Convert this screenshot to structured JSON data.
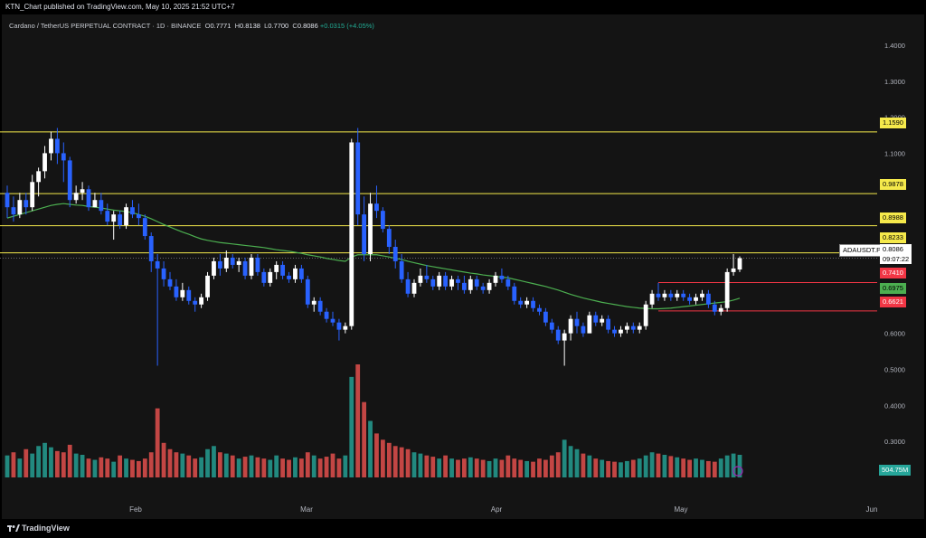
{
  "header": {
    "published": "KTN_Chart published on TradingView.com, May 10, 2025 21:52 UTC+7"
  },
  "legend": {
    "symbol": "Cardano / TetherUS PERPETUAL CONTRACT · 1D · BINANCE",
    "o_label": "O",
    "o": "0.7771",
    "h_label": "H",
    "h": "0.8138",
    "l_label": "L",
    "l": "0.7700",
    "c_label": "C",
    "c": "0.8086",
    "change": "+0.0315 (+4.05%)"
  },
  "price_axis": {
    "ticks": [
      "1.4000",
      "1.3000",
      "1.2000",
      "1.1000",
      "0.6000",
      "0.5000",
      "0.4000",
      "0.3000"
    ]
  },
  "time_axis": {
    "labels": [
      "Feb",
      "Mar",
      "Apr",
      "May",
      "Jun"
    ]
  },
  "labels": {
    "symbol_tag": "ADAUSDT.P",
    "last_price": "0.8086",
    "countdown": "09:07:22",
    "volume_value": "504.75M",
    "level_1159": "1.1590",
    "level_0988": "0.9878",
    "level_0899": "0.8988",
    "level_0823": "0.8233",
    "level_0741": "0.7410",
    "level_0698": "0.6975",
    "level_0662": "0.6621",
    "brand": "TradingView"
  },
  "colors": {
    "up": "#ffffff",
    "down": "#2962ff",
    "vol_up": "#26a69a",
    "vol_down": "#ef5350",
    "ma": "#4caf50",
    "level_yellow": "#f5e94b",
    "level_red": "#f23645",
    "bg": "#141414"
  },
  "chart_data": {
    "type": "candlestick",
    "title": "Cardano / TetherUS PERPETUAL CONTRACT · 1D · BINANCE",
    "ylim": [
      0.22,
      1.45
    ],
    "horizontal_levels": [
      {
        "value": 1.159,
        "color": "yellow"
      },
      {
        "value": 0.9878,
        "color": "yellow"
      },
      {
        "value": 0.8988,
        "color": "yellow"
      },
      {
        "value": 0.8233,
        "color": "yellow"
      },
      {
        "value": 0.741,
        "color": "red"
      },
      {
        "value": 0.6621,
        "color": "red"
      }
    ],
    "ma_last": 0.6975,
    "last_close": 0.8086,
    "candles": [
      [
        0.99,
        1.01,
        0.92,
        0.95
      ],
      [
        0.95,
        0.98,
        0.91,
        0.93
      ],
      [
        0.93,
        0.99,
        0.92,
        0.97
      ],
      [
        0.97,
        0.99,
        0.93,
        0.95
      ],
      [
        0.95,
        1.04,
        0.94,
        1.02
      ],
      [
        1.02,
        1.06,
        0.98,
        1.05
      ],
      [
        1.05,
        1.12,
        1.03,
        1.1
      ],
      [
        1.1,
        1.16,
        1.08,
        1.14
      ],
      [
        1.14,
        1.17,
        1.07,
        1.1
      ],
      [
        1.1,
        1.13,
        1.02,
        1.08
      ],
      [
        1.08,
        1.09,
        0.95,
        0.97
      ],
      [
        0.97,
        1.01,
        0.96,
        0.99
      ],
      [
        0.99,
        1.02,
        0.97,
        1.0
      ],
      [
        1.0,
        1.01,
        0.94,
        0.95
      ],
      [
        0.95,
        0.99,
        0.95,
        0.97
      ],
      [
        0.97,
        0.99,
        0.93,
        0.94
      ],
      [
        0.94,
        0.96,
        0.9,
        0.91
      ],
      [
        0.91,
        0.94,
        0.86,
        0.93
      ],
      [
        0.93,
        0.94,
        0.89,
        0.9
      ],
      [
        0.9,
        0.96,
        0.89,
        0.95
      ],
      [
        0.95,
        0.97,
        0.92,
        0.93
      ],
      [
        0.93,
        0.96,
        0.9,
        0.92
      ],
      [
        0.92,
        0.93,
        0.86,
        0.87
      ],
      [
        0.87,
        0.88,
        0.77,
        0.8
      ],
      [
        0.8,
        0.82,
        0.51,
        0.78
      ],
      [
        0.78,
        0.8,
        0.73,
        0.75
      ],
      [
        0.75,
        0.77,
        0.72,
        0.73
      ],
      [
        0.73,
        0.75,
        0.69,
        0.7
      ],
      [
        0.7,
        0.74,
        0.69,
        0.72
      ],
      [
        0.72,
        0.73,
        0.68,
        0.69
      ],
      [
        0.69,
        0.7,
        0.66,
        0.68
      ],
      [
        0.68,
        0.71,
        0.67,
        0.7
      ],
      [
        0.7,
        0.77,
        0.69,
        0.76
      ],
      [
        0.76,
        0.81,
        0.75,
        0.8
      ],
      [
        0.8,
        0.82,
        0.76,
        0.78
      ],
      [
        0.78,
        0.83,
        0.77,
        0.81
      ],
      [
        0.81,
        0.82,
        0.78,
        0.79
      ],
      [
        0.79,
        0.81,
        0.77,
        0.8
      ],
      [
        0.8,
        0.81,
        0.75,
        0.76
      ],
      [
        0.76,
        0.82,
        0.75,
        0.81
      ],
      [
        0.81,
        0.82,
        0.76,
        0.77
      ],
      [
        0.77,
        0.78,
        0.73,
        0.74
      ],
      [
        0.74,
        0.78,
        0.73,
        0.77
      ],
      [
        0.77,
        0.8,
        0.75,
        0.79
      ],
      [
        0.79,
        0.8,
        0.75,
        0.76
      ],
      [
        0.76,
        0.77,
        0.74,
        0.75
      ],
      [
        0.75,
        0.79,
        0.74,
        0.78
      ],
      [
        0.78,
        0.79,
        0.74,
        0.75
      ],
      [
        0.75,
        0.76,
        0.67,
        0.68
      ],
      [
        0.68,
        0.7,
        0.66,
        0.69
      ],
      [
        0.69,
        0.7,
        0.65,
        0.66
      ],
      [
        0.66,
        0.67,
        0.63,
        0.64
      ],
      [
        0.64,
        0.66,
        0.62,
        0.63
      ],
      [
        0.63,
        0.64,
        0.58,
        0.61
      ],
      [
        0.61,
        0.63,
        0.6,
        0.62
      ],
      [
        0.62,
        1.14,
        0.61,
        1.13
      ],
      [
        1.13,
        1.17,
        0.9,
        0.93
      ],
      [
        0.93,
        0.98,
        0.8,
        0.82
      ],
      [
        0.82,
        0.99,
        0.8,
        0.96
      ],
      [
        0.96,
        1.01,
        0.92,
        0.94
      ],
      [
        0.94,
        0.95,
        0.88,
        0.89
      ],
      [
        0.89,
        0.9,
        0.82,
        0.84
      ],
      [
        0.84,
        0.86,
        0.78,
        0.8
      ],
      [
        0.8,
        0.82,
        0.74,
        0.75
      ],
      [
        0.75,
        0.77,
        0.7,
        0.71
      ],
      [
        0.71,
        0.75,
        0.7,
        0.74
      ],
      [
        0.74,
        0.78,
        0.73,
        0.76
      ],
      [
        0.76,
        0.79,
        0.74,
        0.75
      ],
      [
        0.75,
        0.76,
        0.72,
        0.73
      ],
      [
        0.73,
        0.77,
        0.72,
        0.76
      ],
      [
        0.76,
        0.77,
        0.72,
        0.73
      ],
      [
        0.73,
        0.76,
        0.72,
        0.75
      ],
      [
        0.75,
        0.76,
        0.72,
        0.74
      ],
      [
        0.74,
        0.76,
        0.71,
        0.72
      ],
      [
        0.72,
        0.76,
        0.71,
        0.75
      ],
      [
        0.75,
        0.76,
        0.72,
        0.73
      ],
      [
        0.73,
        0.74,
        0.71,
        0.72
      ],
      [
        0.72,
        0.75,
        0.71,
        0.74
      ],
      [
        0.74,
        0.77,
        0.73,
        0.76
      ],
      [
        0.76,
        0.78,
        0.74,
        0.75
      ],
      [
        0.75,
        0.76,
        0.72,
        0.73
      ],
      [
        0.73,
        0.74,
        0.68,
        0.69
      ],
      [
        0.69,
        0.7,
        0.67,
        0.68
      ],
      [
        0.68,
        0.7,
        0.67,
        0.69
      ],
      [
        0.69,
        0.7,
        0.66,
        0.67
      ],
      [
        0.67,
        0.68,
        0.65,
        0.66
      ],
      [
        0.66,
        0.67,
        0.62,
        0.63
      ],
      [
        0.63,
        0.64,
        0.6,
        0.61
      ],
      [
        0.61,
        0.62,
        0.57,
        0.58
      ],
      [
        0.58,
        0.61,
        0.51,
        0.6
      ],
      [
        0.6,
        0.65,
        0.58,
        0.64
      ],
      [
        0.64,
        0.66,
        0.6,
        0.62
      ],
      [
        0.62,
        0.63,
        0.59,
        0.6
      ],
      [
        0.6,
        0.66,
        0.6,
        0.65
      ],
      [
        0.65,
        0.66,
        0.62,
        0.63
      ],
      [
        0.63,
        0.65,
        0.62,
        0.64
      ],
      [
        0.64,
        0.65,
        0.6,
        0.61
      ],
      [
        0.61,
        0.62,
        0.59,
        0.6
      ],
      [
        0.6,
        0.62,
        0.59,
        0.61
      ],
      [
        0.61,
        0.63,
        0.6,
        0.62
      ],
      [
        0.62,
        0.63,
        0.6,
        0.61
      ],
      [
        0.61,
        0.63,
        0.6,
        0.62
      ],
      [
        0.62,
        0.69,
        0.61,
        0.68
      ],
      [
        0.68,
        0.72,
        0.67,
        0.71
      ],
      [
        0.71,
        0.74,
        0.69,
        0.7
      ],
      [
        0.7,
        0.72,
        0.69,
        0.71
      ],
      [
        0.71,
        0.72,
        0.69,
        0.7
      ],
      [
        0.7,
        0.72,
        0.69,
        0.71
      ],
      [
        0.71,
        0.72,
        0.69,
        0.7
      ],
      [
        0.7,
        0.71,
        0.68,
        0.69
      ],
      [
        0.69,
        0.71,
        0.68,
        0.7
      ],
      [
        0.7,
        0.72,
        0.69,
        0.71
      ],
      [
        0.71,
        0.72,
        0.67,
        0.68
      ],
      [
        0.68,
        0.69,
        0.65,
        0.66
      ],
      [
        0.66,
        0.68,
        0.65,
        0.67
      ],
      [
        0.67,
        0.78,
        0.66,
        0.77
      ],
      [
        0.77,
        0.82,
        0.76,
        0.78
      ],
      [
        0.7771,
        0.8138,
        0.77,
        0.8086
      ]
    ],
    "volume": [
      35,
      40,
      30,
      45,
      38,
      50,
      55,
      48,
      42,
      40,
      52,
      38,
      36,
      30,
      28,
      32,
      30,
      25,
      35,
      30,
      28,
      26,
      30,
      40,
      110,
      55,
      45,
      40,
      38,
      35,
      30,
      32,
      45,
      50,
      40,
      38,
      35,
      30,
      33,
      35,
      32,
      30,
      28,
      35,
      30,
      28,
      32,
      30,
      40,
      35,
      30,
      33,
      38,
      30,
      35,
      160,
      180,
      120,
      90,
      70,
      60,
      55,
      50,
      48,
      45,
      40,
      38,
      35,
      33,
      30,
      35,
      30,
      28,
      30,
      32,
      30,
      28,
      26,
      30,
      28,
      35,
      30,
      28,
      26,
      25,
      30,
      28,
      35,
      40,
      60,
      50,
      45,
      38,
      35,
      30,
      28,
      26,
      25,
      24,
      26,
      28,
      30,
      35,
      40,
      38,
      36,
      34,
      32,
      30,
      28,
      30,
      28,
      26,
      25,
      30,
      35,
      38,
      36
    ],
    "volume_dir": [
      1,
      0,
      1,
      0,
      1,
      1,
      1,
      1,
      0,
      0,
      0,
      1,
      1,
      0,
      1,
      0,
      0,
      1,
      0,
      1,
      0,
      0,
      0,
      0,
      0,
      0,
      0,
      0,
      1,
      0,
      0,
      1,
      1,
      1,
      0,
      1,
      0,
      1,
      0,
      1,
      0,
      0,
      1,
      1,
      0,
      0,
      1,
      0,
      0,
      1,
      0,
      0,
      0,
      0,
      1,
      1,
      0,
      0,
      1,
      0,
      0,
      0,
      0,
      0,
      0,
      1,
      1,
      0,
      0,
      1,
      0,
      1,
      0,
      0,
      1,
      0,
      0,
      1,
      1,
      0,
      0,
      0,
      0,
      1,
      0,
      0,
      0,
      0,
      0,
      1,
      1,
      1,
      0,
      1,
      0,
      1,
      0,
      0,
      1,
      1,
      0,
      1,
      1,
      1,
      0,
      1,
      0,
      1,
      0,
      0,
      1,
      1,
      0,
      0,
      1,
      1,
      1,
      1
    ],
    "ma": [
      0.92,
      0.925,
      0.93,
      0.935,
      0.94,
      0.945,
      0.95,
      0.955,
      0.958,
      0.96,
      0.958,
      0.956,
      0.955,
      0.952,
      0.95,
      0.948,
      0.945,
      0.942,
      0.94,
      0.938,
      0.935,
      0.93,
      0.925,
      0.918,
      0.91,
      0.902,
      0.895,
      0.888,
      0.881,
      0.875,
      0.868,
      0.862,
      0.858,
      0.855,
      0.852,
      0.85,
      0.848,
      0.846,
      0.844,
      0.842,
      0.84,
      0.838,
      0.835,
      0.832,
      0.83,
      0.828,
      0.825,
      0.822,
      0.818,
      0.815,
      0.812,
      0.808,
      0.805,
      0.802,
      0.8,
      0.812,
      0.818,
      0.818,
      0.818,
      0.818,
      0.815,
      0.812,
      0.808,
      0.805,
      0.8,
      0.796,
      0.792,
      0.788,
      0.785,
      0.782,
      0.779,
      0.776,
      0.773,
      0.77,
      0.767,
      0.765,
      0.762,
      0.76,
      0.758,
      0.756,
      0.754,
      0.75,
      0.746,
      0.742,
      0.738,
      0.734,
      0.73,
      0.725,
      0.72,
      0.714,
      0.708,
      0.703,
      0.698,
      0.694,
      0.69,
      0.686,
      0.683,
      0.68,
      0.677,
      0.674,
      0.672,
      0.67,
      0.669,
      0.668,
      0.668,
      0.669,
      0.67,
      0.672,
      0.674,
      0.676,
      0.678,
      0.68,
      0.682,
      0.684,
      0.686,
      0.688,
      0.692,
      0.6975
    ]
  }
}
